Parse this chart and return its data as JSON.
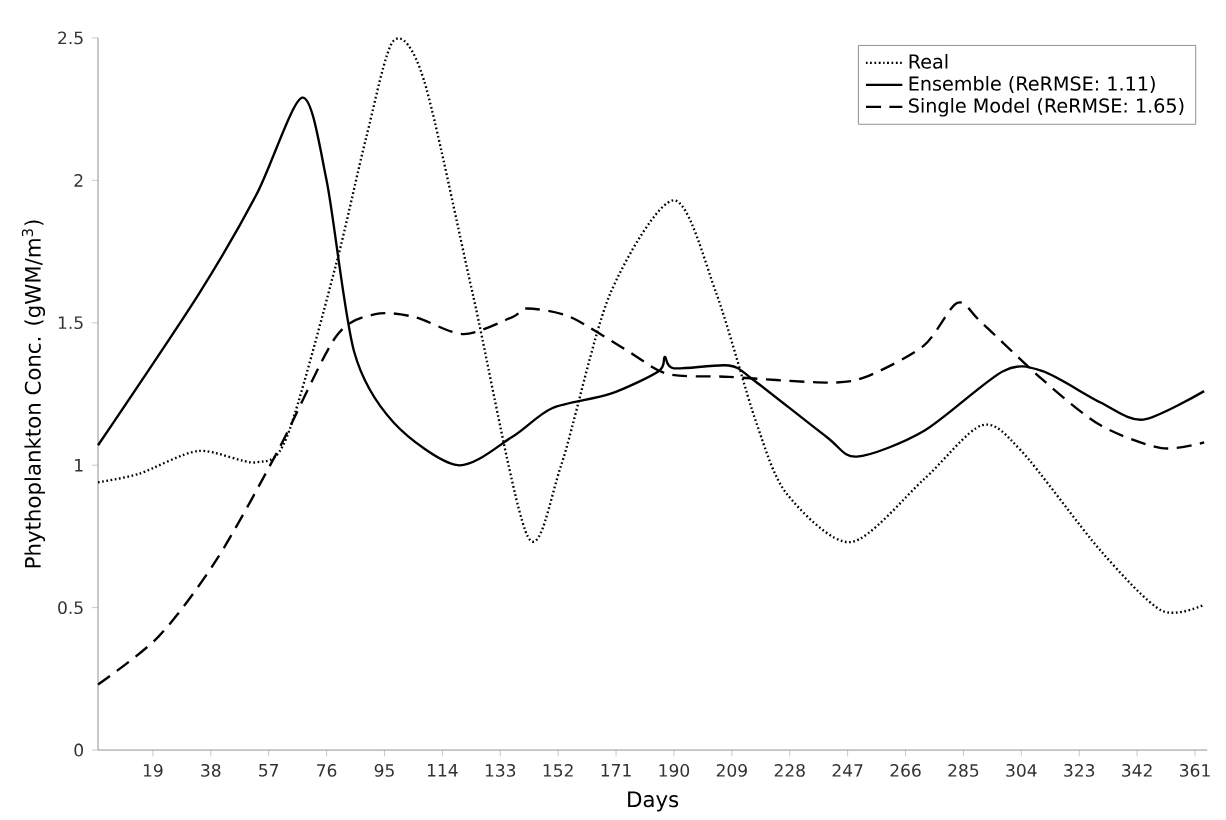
{
  "chart_data": {
    "type": "line",
    "xlabel": "Days",
    "ylabel": "Phythoplankton Conc. (gWM/m$^{3}$)",
    "xlim": [
      1,
      365
    ],
    "xticks": [
      19,
      38,
      57,
      76,
      95,
      114,
      133,
      152,
      171,
      190,
      209,
      228,
      247,
      266,
      285,
      304,
      323,
      342,
      361
    ],
    "ylim": [
      0,
      2.5
    ],
    "yticks": [
      0,
      0.5,
      1,
      1.5,
      2,
      2.5
    ],
    "grid": false,
    "legend": "top right",
    "marker": "none",
    "series": [
      {
        "name": "Real",
        "color": "#000000",
        "line_style": "dotted",
        "x": [
          1,
          14.5,
          34,
          53,
          63,
          79,
          89,
          98,
          108,
          124,
          142,
          153,
          169,
          190,
          204,
          217,
          227,
          248,
          272,
          291,
          304,
          330,
          350,
          364
        ],
        "values": [
          0.94,
          0.97,
          1.05,
          1.01,
          1.1,
          1.7,
          2.15,
          2.49,
          2.35,
          1.6,
          0.75,
          1.0,
          1.6,
          1.93,
          1.6,
          1.15,
          0.9,
          0.73,
          0.95,
          1.14,
          1.05,
          0.7,
          0.49,
          0.51
        ]
      },
      {
        "name": "Ensemble (ReRMSE: 1.11)",
        "color": "#000000",
        "line_style": "solid",
        "x": [
          1,
          34,
          53,
          68,
          76,
          85,
          98,
          119,
          137,
          150,
          169,
          185,
          187,
          190,
          208,
          216,
          240,
          250,
          272,
          298,
          311,
          330,
          344,
          364
        ],
        "values": [
          1.07,
          1.6,
          1.95,
          2.29,
          2.0,
          1.4,
          1.15,
          1.0,
          1.1,
          1.2,
          1.25,
          1.33,
          1.38,
          1.34,
          1.35,
          1.3,
          1.1,
          1.03,
          1.12,
          1.33,
          1.33,
          1.22,
          1.16,
          1.26
        ]
      },
      {
        "name": "Single Model (ReRMSE: 1.65)",
        "color": "#000000",
        "line_style": "dashed",
        "x": [
          1,
          21,
          40,
          60,
          79,
          92,
          105,
          121,
          137,
          142,
          156,
          175,
          188,
          208,
          240,
          253,
          272,
          283,
          291,
          311,
          330,
          350,
          364
        ],
        "values": [
          0.23,
          0.4,
          0.67,
          1.05,
          1.45,
          1.53,
          1.52,
          1.46,
          1.52,
          1.55,
          1.52,
          1.4,
          1.32,
          1.31,
          1.29,
          1.31,
          1.42,
          1.57,
          1.5,
          1.3,
          1.14,
          1.06,
          1.08
        ]
      }
    ]
  }
}
